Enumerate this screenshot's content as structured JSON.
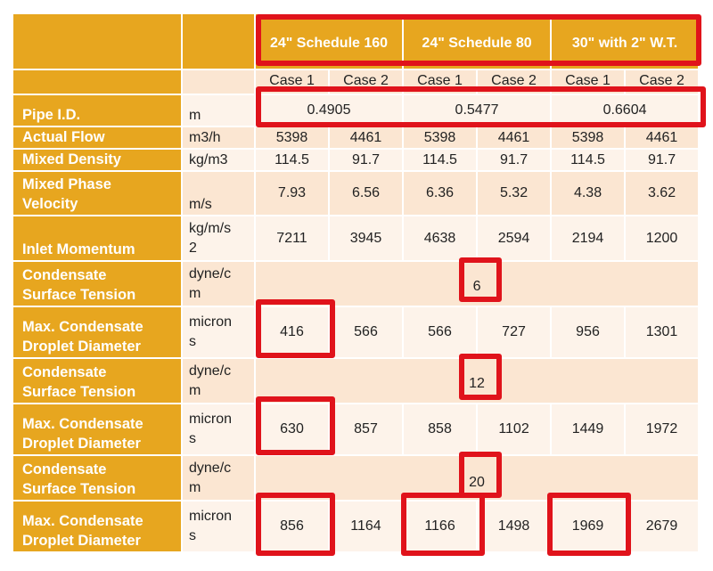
{
  "columns": [
    {
      "label": "24\" Schedule 160"
    },
    {
      "label": "24\" Schedule 80"
    },
    {
      "label": "30\" with 2\" W.T."
    }
  ],
  "cases": [
    "Case 1",
    "Case 2",
    "Case 1",
    "Case 2",
    "Case 1",
    "Case 2"
  ],
  "pipe_id": {
    "label": "Pipe I.D.",
    "unit": "m",
    "values": [
      "0.4905",
      "0.5477",
      "0.6604"
    ]
  },
  "actual_flow": {
    "label": "Actual Flow",
    "unit": "m3/h",
    "values": [
      "5398",
      "4461",
      "5398",
      "4461",
      "5398",
      "4461"
    ]
  },
  "mixed_density": {
    "label": "Mixed Density",
    "unit": "kg/m3",
    "values": [
      "114.5",
      "91.7",
      "114.5",
      "91.7",
      "114.5",
      "91.7"
    ]
  },
  "mixed_velocity": {
    "label_1": "Mixed Phase",
    "label_2": "Velocity",
    "unit": "m/s",
    "values": [
      "7.93",
      "6.56",
      "6.36",
      "5.32",
      "4.38",
      "3.62"
    ]
  },
  "inlet_momentum": {
    "label": "Inlet Momentum",
    "unit_1": "kg/m/s",
    "unit_2": "2",
    "values": [
      "7211",
      "3945",
      "4638",
      "2594",
      "2194",
      "1200"
    ]
  },
  "tension_1": {
    "label_1": "Condensate",
    "label_2": "Surface Tension",
    "unit_1": "dyne/c",
    "unit_2": "m",
    "value": "6"
  },
  "droplet_1": {
    "label_1": "Max. Condensate",
    "label_2": "Droplet Diameter",
    "unit_1": "micron",
    "unit_2": "s",
    "values": [
      "416",
      "566",
      "566",
      "727",
      "956",
      "1301"
    ]
  },
  "tension_2": {
    "label_1": "Condensate",
    "label_2": "Surface Tension",
    "unit_1": "dyne/c",
    "unit_2": "m",
    "value": "12"
  },
  "droplet_2": {
    "label_1": "Max. Condensate",
    "label_2": "Droplet Diameter",
    "unit_1": "micron",
    "unit_2": "s",
    "values": [
      "630",
      "857",
      "858",
      "1102",
      "1449",
      "1972"
    ]
  },
  "tension_3": {
    "label_1": "Condensate",
    "label_2": "Surface Tension",
    "unit_1": "dyne/c",
    "unit_2": "m",
    "value": "20"
  },
  "droplet_3": {
    "label_1": "Max. Condensate",
    "label_2": "Droplet Diameter",
    "unit_1": "micron",
    "unit_2": "s",
    "values": [
      "856",
      "1164",
      "1166",
      "1498",
      "1969",
      "2679"
    ]
  },
  "colors": {
    "header_orange": "#e7a61f",
    "row_tint_dark": "#fbe6d2",
    "row_tint_light": "#fdf3ea",
    "highlight_red": "#e0131b"
  }
}
